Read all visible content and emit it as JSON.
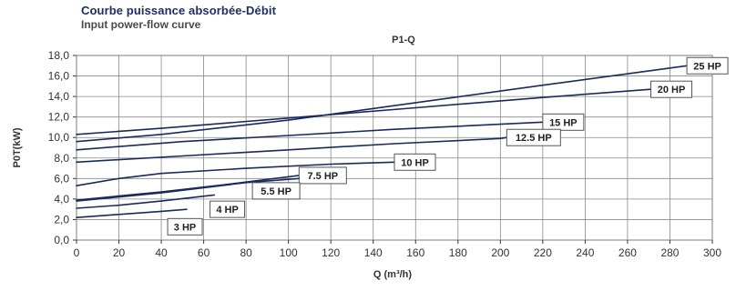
{
  "header": {
    "title": "Courbe puissance absorbée-Débit",
    "subtitle": "Input power-flow curve"
  },
  "colors": {
    "curve": "#1a2a5e",
    "grid": "#888888",
    "label_border": "#555555"
  },
  "chart_data": {
    "type": "line",
    "title": "P1-Q",
    "xlabel": "Q (m³/h)",
    "ylabel": "P0T(kW)",
    "xlim": [
      0,
      300
    ],
    "ylim": [
      0,
      18
    ],
    "x_ticks": [
      "0",
      "20",
      "40",
      "60",
      "80",
      "100",
      "120",
      "140",
      "160",
      "180",
      "200",
      "220",
      "240",
      "260",
      "280",
      "300"
    ],
    "y_ticks": [
      "0,0",
      "2,0",
      "4,0",
      "6,0",
      "8,0",
      "10,0",
      "12,0",
      "14,0",
      "16,0",
      "18,0"
    ],
    "grid": true,
    "series": [
      {
        "name": "25 HP",
        "x": [
          0,
          40,
          100,
          160,
          220,
          288
        ],
        "y": [
          9.6,
          10.3,
          11.7,
          13.4,
          15.1,
          17.0
        ]
      },
      {
        "name": "20 HP",
        "x": [
          0,
          40,
          100,
          160,
          220,
          271
        ],
        "y": [
          10.3,
          10.9,
          11.9,
          12.9,
          13.9,
          14.7
        ]
      },
      {
        "name": "15 HP",
        "x": [
          0,
          50,
          100,
          150,
          200,
          220
        ],
        "y": [
          8.8,
          9.6,
          10.2,
          10.8,
          11.3,
          11.5
        ]
      },
      {
        "name": "12.5 HP",
        "x": [
          0,
          50,
          100,
          150,
          200,
          203
        ],
        "y": [
          7.6,
          8.2,
          8.8,
          9.4,
          9.9,
          10.0
        ]
      },
      {
        "name": "10 HP",
        "x": [
          0,
          20,
          40,
          80,
          120,
          150
        ],
        "y": [
          5.3,
          6.0,
          6.5,
          7.0,
          7.4,
          7.6
        ]
      },
      {
        "name": "7.5 HP",
        "x": [
          0,
          40,
          70,
          105
        ],
        "y": [
          3.9,
          4.7,
          5.4,
          6.3
        ]
      },
      {
        "name": "5.5 HP",
        "x": [
          0,
          40,
          80,
          105
        ],
        "y": [
          3.8,
          4.6,
          5.6,
          6.0
        ]
      },
      {
        "name": "4 HP",
        "x": [
          0,
          20,
          40,
          65
        ],
        "y": [
          3.1,
          3.4,
          3.8,
          4.4
        ]
      },
      {
        "name": "3 HP",
        "x": [
          0,
          20,
          40,
          52
        ],
        "y": [
          2.2,
          2.5,
          2.8,
          3.0
        ]
      }
    ]
  }
}
